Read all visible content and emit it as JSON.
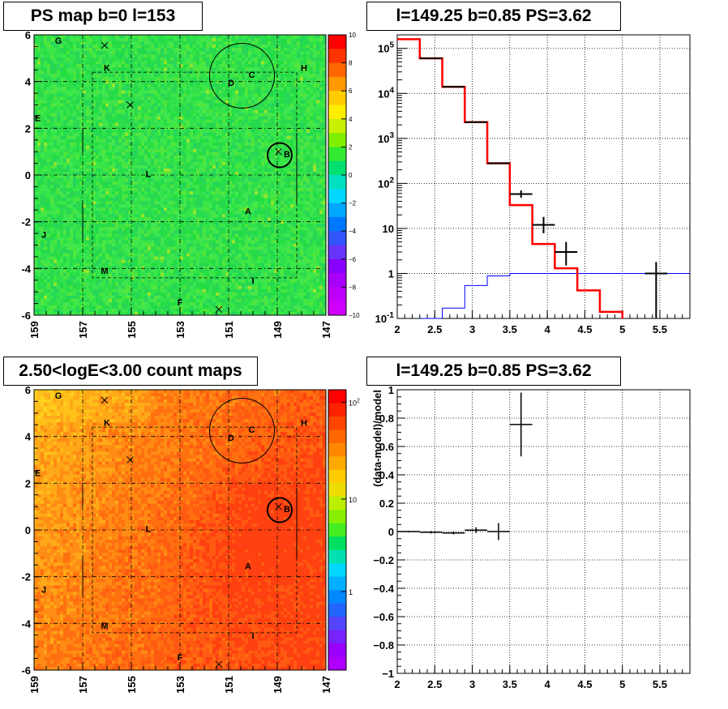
{
  "chart_data": [
    {
      "type": "heatmap",
      "title": "PS map b=0 l=153",
      "x_ticks": [
        "159",
        "157",
        "155",
        "153",
        "151",
        "149",
        "147"
      ],
      "y_ticks": [
        "6",
        "4",
        "2",
        "0",
        "-2",
        "-4",
        "-6"
      ],
      "xlim": [
        159,
        147
      ],
      "ylim": [
        -6,
        6
      ],
      "color_scale": {
        "min": -10,
        "max": 10,
        "ticks": [
          "10",
          "8",
          "6",
          "4",
          "2",
          "0",
          "−2",
          "−4",
          "−6",
          "−8",
          "−10"
        ]
      },
      "grid": true,
      "sources": [
        {
          "label": "G",
          "l": 158.0,
          "b": 5.75
        },
        {
          "label": "K",
          "l": 156.0,
          "b": 4.6
        },
        {
          "label": "C",
          "l": 150.05,
          "b": 4.3
        },
        {
          "label": "D",
          "l": 150.9,
          "b": 3.95
        },
        {
          "label": "H",
          "l": 147.9,
          "b": 4.6
        },
        {
          "label": "E",
          "l": 158.85,
          "b": 2.45
        },
        {
          "label": "B",
          "l": 148.6,
          "b": 0.9
        },
        {
          "label": "L",
          "l": 154.3,
          "b": 0.05
        },
        {
          "label": "A",
          "l": 150.2,
          "b": -1.55
        },
        {
          "label": "J",
          "l": 158.6,
          "b": -2.55
        },
        {
          "label": "M",
          "l": 156.1,
          "b": -4.1
        },
        {
          "label": "I",
          "l": 150.0,
          "b": -4.5
        },
        {
          "label": "F",
          "l": 153.0,
          "b": -5.45
        }
      ],
      "crosses": [
        {
          "l": 156.1,
          "b": 5.55
        },
        {
          "l": 155.05,
          "b": 3.0
        },
        {
          "l": 151.4,
          "b": -5.75
        },
        {
          "l": 148.95,
          "b": 1.0
        }
      ]
    },
    {
      "type": "line",
      "title": "l=149.25 b=0.85 PS=3.62",
      "xlim": [
        2,
        5.9
      ],
      "ylim": [
        0.1,
        200000
      ],
      "y_scale": "log",
      "x_ticks": [
        "2",
        "2.5",
        "3",
        "3.5",
        "4",
        "4.5",
        "5",
        "5.5"
      ],
      "y_ticks": [
        "10^5",
        "10^4",
        "10^3",
        "10^2",
        "10",
        "1",
        "10^-1"
      ],
      "grid": true,
      "series": [
        {
          "color": "#ff0000",
          "edges": [
            2.0,
            2.3,
            2.6,
            2.9,
            3.2,
            3.5,
            3.8,
            4.1,
            4.4,
            4.7,
            5.0
          ],
          "values": [
            160000,
            60000,
            14000,
            2300,
            280,
            33,
            4.5,
            1.3,
            0.42,
            0.14
          ]
        },
        {
          "color": "#0000ff",
          "edges": [
            2.3,
            2.6,
            2.9,
            3.2,
            3.5,
            5.9
          ],
          "values": [
            0.06,
            0.17,
            0.54,
            0.88,
            1.0
          ]
        },
        {
          "color": "#000000",
          "points": [
            {
              "x": 2.45,
              "y": 60000,
              "xerr": 0.15
            },
            {
              "x": 2.75,
              "y": 14000,
              "xerr": 0.15
            },
            {
              "x": 3.05,
              "y": 2300,
              "xerr": 0.15
            },
            {
              "x": 3.35,
              "y": 280,
              "xerr": 0.15
            },
            {
              "x": 3.65,
              "y": 58,
              "xerr": 0.15,
              "ylo": 48,
              "yhi": 70
            },
            {
              "x": 3.95,
              "y": 12,
              "xerr": 0.15,
              "ylo": 7.8,
              "yhi": 18
            },
            {
              "x": 4.25,
              "y": 3,
              "xerr": 0.15,
              "ylo": 1.5,
              "yhi": 5
            },
            {
              "x": 5.45,
              "y": 1,
              "xerr": 0.15,
              "ylo": 0.1,
              "yhi": 1.8
            }
          ]
        }
      ]
    },
    {
      "type": "heatmap",
      "title": "2.50<logE<3.00 count maps",
      "x_ticks": [
        "159",
        "157",
        "155",
        "153",
        "151",
        "149",
        "147"
      ],
      "y_ticks": [
        "6",
        "4",
        "2",
        "0",
        "-2",
        "-4",
        "-6"
      ],
      "xlim": [
        159,
        147
      ],
      "ylim": [
        -6,
        6
      ],
      "color_scale": {
        "scale": "log",
        "ticks": [
          "10^2",
          "10",
          "1"
        ]
      },
      "grid": true
    },
    {
      "type": "scatter",
      "title": "l=149.25 b=0.85 PS=3.62",
      "ylabel": "(data-model)/model",
      "xlim": [
        2,
        5.9
      ],
      "ylim": [
        -1,
        1
      ],
      "x_ticks": [
        "2",
        "2.5",
        "3",
        "3.5",
        "4",
        "4.5",
        "5",
        "5.5"
      ],
      "y_ticks": [
        "1",
        "0.8",
        "0.6",
        "0.4",
        "0.2",
        "0",
        "−0.2",
        "−0.4",
        "−0.6",
        "−0.8",
        "−1"
      ],
      "grid": true,
      "points": [
        {
          "x": 2.15,
          "y": 0.0,
          "xerr": 0.15,
          "yerr": 0.005
        },
        {
          "x": 2.45,
          "y": -0.005,
          "xerr": 0.15,
          "yerr": 0.008
        },
        {
          "x": 2.75,
          "y": -0.01,
          "xerr": 0.15,
          "yerr": 0.01
        },
        {
          "x": 3.05,
          "y": 0.01,
          "xerr": 0.15,
          "yerr": 0.02
        },
        {
          "x": 3.35,
          "y": 0.0,
          "xerr": 0.15,
          "yerr": 0.06
        },
        {
          "x": 3.65,
          "y": 0.755,
          "xerr": 0.15,
          "ylo": 0.53,
          "yhi": 0.98
        }
      ]
    }
  ]
}
